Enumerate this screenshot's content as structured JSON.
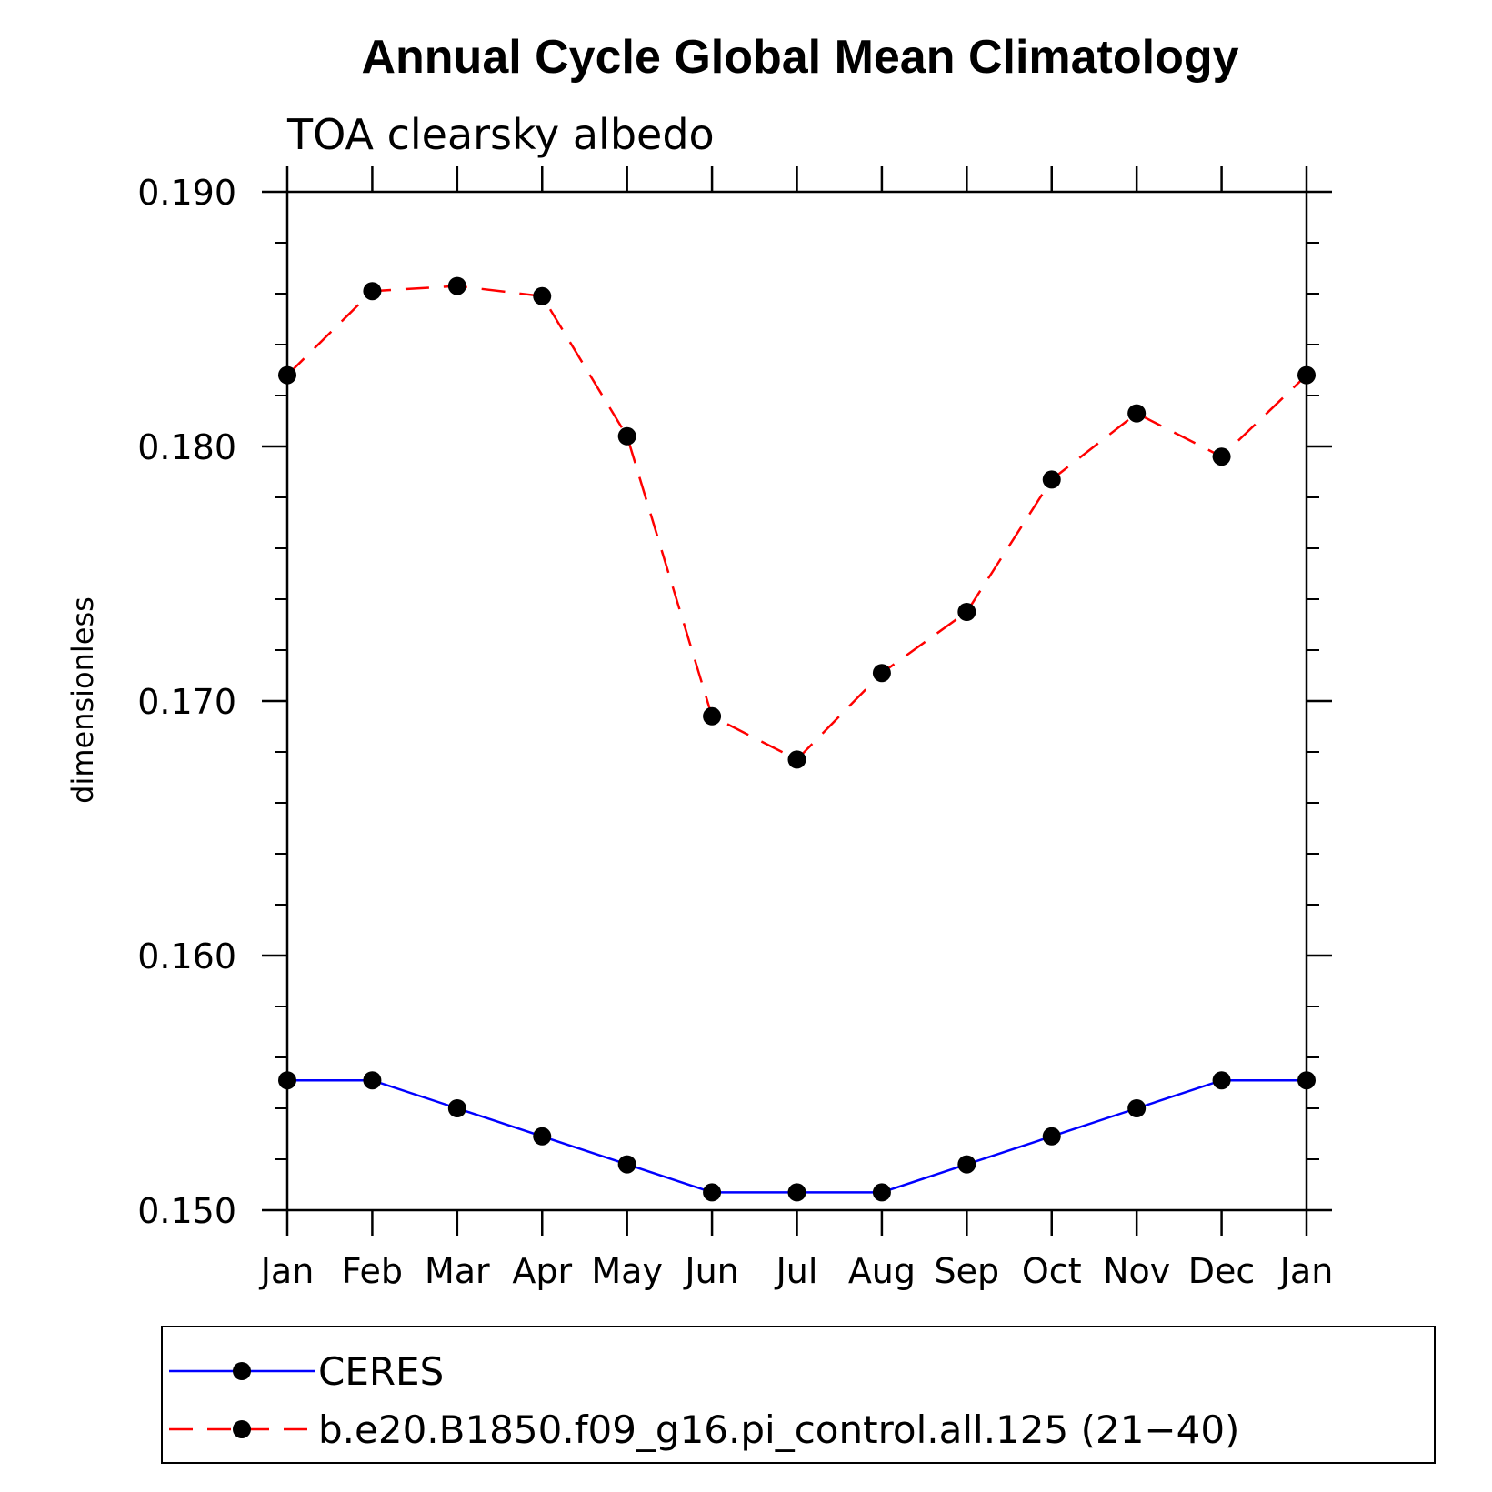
{
  "chart_data": {
    "type": "line",
    "title": "Annual Cycle Global Mean Climatology",
    "subtitle": "TOA clearsky albedo",
    "xlabel": "",
    "ylabel": "dimensionless",
    "categories": [
      "Jan",
      "Feb",
      "Mar",
      "Apr",
      "May",
      "Jun",
      "Jul",
      "Aug",
      "Sep",
      "Oct",
      "Nov",
      "Dec",
      "Jan"
    ],
    "ylim": [
      0.15,
      0.19
    ],
    "yticks": [
      "0.150",
      "0.160",
      "0.170",
      "0.180",
      "0.190"
    ],
    "ytick_values": [
      0.15,
      0.16,
      0.17,
      0.18,
      0.19
    ],
    "y_minor_step": 0.002,
    "grid": false,
    "legend_position": "bottom",
    "series": [
      {
        "name": "CERES",
        "color": "#0000ff",
        "style": "solid",
        "marker": "filled-circle",
        "values": [
          0.1551,
          0.1551,
          0.154,
          0.1529,
          0.1518,
          0.1507,
          0.1507,
          0.1507,
          0.1518,
          0.1529,
          0.154,
          0.1551,
          0.1551
        ]
      },
      {
        "name": "b.e20.B1850.f09_g16.pi_control.all.125 (21−40)",
        "color": "#ff0000",
        "style": "dashed",
        "marker": "filled-circle",
        "values": [
          0.1828,
          0.1861,
          0.1863,
          0.1859,
          0.1804,
          0.1694,
          0.1677,
          0.1711,
          0.1735,
          0.1787,
          0.1813,
          0.1796,
          0.1828
        ]
      }
    ]
  }
}
